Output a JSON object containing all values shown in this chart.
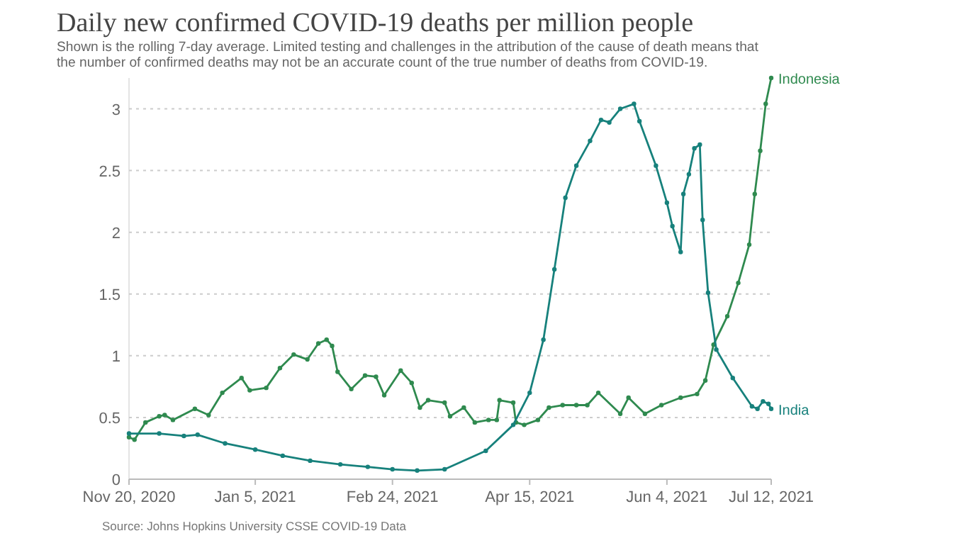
{
  "chart_data": {
    "type": "line",
    "title": "Daily new confirmed COVID-19 deaths per million people",
    "subtitle": "Shown is the rolling 7-day average. Limited testing and challenges in the attribution of the cause of death means that the number of confirmed deaths may not be an accurate count of the true number of deaths from COVID-19.",
    "annotations": [
      "Source: Johns Hopkins University CSSE COVID-19 Data"
    ],
    "xlim": [
      "2020-11-20",
      "2021-07-12"
    ],
    "xticks": [
      {
        "value": "2020-11-20",
        "label": "Nov 20, 2020"
      },
      {
        "value": "2021-01-05",
        "label": "Jan 5, 2021"
      },
      {
        "value": "2021-02-24",
        "label": "Feb 24, 2021"
      },
      {
        "value": "2021-04-15",
        "label": "Apr 15, 2021"
      },
      {
        "value": "2021-06-04",
        "label": "Jun 4, 2021"
      },
      {
        "value": "2021-07-12",
        "label": "Jul 12, 2021"
      }
    ],
    "ylim": [
      0,
      3.25
    ],
    "yticks": [
      0,
      0.5,
      1,
      1.5,
      2,
      2.5,
      3
    ],
    "grid": "y",
    "legend": false,
    "marker": "circle",
    "line_style": "solid",
    "series": [
      {
        "name": "Indonesia",
        "color": "#2f8a4f",
        "x": [
          "2020-11-20",
          "2020-11-22",
          "2020-11-26",
          "2020-12-01",
          "2020-12-03",
          "2020-12-06",
          "2020-12-14",
          "2020-12-19",
          "2020-12-24",
          "2020-12-31",
          "2021-01-03",
          "2021-01-09",
          "2021-01-14",
          "2021-01-19",
          "2021-01-24",
          "2021-01-28",
          "2021-01-31",
          "2021-02-02",
          "2021-02-04",
          "2021-02-09",
          "2021-02-14",
          "2021-02-18",
          "2021-02-21",
          "2021-02-27",
          "2021-03-03",
          "2021-03-06",
          "2021-03-09",
          "2021-03-15",
          "2021-03-17",
          "2021-03-22",
          "2021-03-26",
          "2021-03-31",
          "2021-04-03",
          "2021-04-04",
          "2021-04-09",
          "2021-04-10",
          "2021-04-13",
          "2021-04-18",
          "2021-04-22",
          "2021-04-27",
          "2021-05-02",
          "2021-05-06",
          "2021-05-10",
          "2021-05-18",
          "2021-05-21",
          "2021-05-27",
          "2021-06-02",
          "2021-06-09",
          "2021-06-15",
          "2021-06-18",
          "2021-06-21",
          "2021-06-26",
          "2021-06-30",
          "2021-07-04",
          "2021-07-06",
          "2021-07-08",
          "2021-07-10",
          "2021-07-12"
        ],
        "values": [
          0.34,
          0.32,
          0.46,
          0.51,
          0.52,
          0.48,
          0.57,
          0.52,
          0.7,
          0.82,
          0.72,
          0.74,
          0.9,
          1.01,
          0.97,
          1.1,
          1.13,
          1.08,
          0.87,
          0.73,
          0.84,
          0.83,
          0.68,
          0.88,
          0.78,
          0.58,
          0.64,
          0.62,
          0.51,
          0.58,
          0.46,
          0.48,
          0.48,
          0.64,
          0.62,
          0.46,
          0.44,
          0.48,
          0.58,
          0.6,
          0.6,
          0.6,
          0.7,
          0.53,
          0.66,
          0.53,
          0.6,
          0.66,
          0.69,
          0.8,
          1.09,
          1.32,
          1.59,
          1.9,
          2.31,
          2.66,
          3.04,
          3.25
        ]
      },
      {
        "name": "India",
        "color": "#17817c",
        "x": [
          "2020-11-20",
          "2020-12-01",
          "2020-12-10",
          "2020-12-15",
          "2020-12-25",
          "2021-01-05",
          "2021-01-15",
          "2021-01-25",
          "2021-02-05",
          "2021-02-15",
          "2021-02-24",
          "2021-03-05",
          "2021-03-15",
          "2021-03-30",
          "2021-04-09",
          "2021-04-15",
          "2021-04-20",
          "2021-04-24",
          "2021-04-28",
          "2021-05-02",
          "2021-05-07",
          "2021-05-11",
          "2021-05-14",
          "2021-05-18",
          "2021-05-23",
          "2021-05-25",
          "2021-05-31",
          "2021-06-04",
          "2021-06-06",
          "2021-06-09",
          "2021-06-10",
          "2021-06-12",
          "2021-06-14",
          "2021-06-16",
          "2021-06-17",
          "2021-06-19",
          "2021-06-22",
          "2021-06-28",
          "2021-07-05",
          "2021-07-07",
          "2021-07-09",
          "2021-07-11",
          "2021-07-12"
        ],
        "values": [
          0.37,
          0.37,
          0.35,
          0.36,
          0.29,
          0.24,
          0.19,
          0.15,
          0.12,
          0.1,
          0.08,
          0.07,
          0.08,
          0.23,
          0.44,
          0.7,
          1.13,
          1.7,
          2.28,
          2.54,
          2.74,
          2.91,
          2.89,
          3.0,
          3.04,
          2.9,
          2.54,
          2.24,
          2.05,
          1.84,
          2.31,
          2.47,
          2.68,
          2.71,
          2.1,
          1.51,
          1.05,
          0.82,
          0.59,
          0.57,
          0.63,
          0.61,
          0.57
        ]
      }
    ]
  }
}
